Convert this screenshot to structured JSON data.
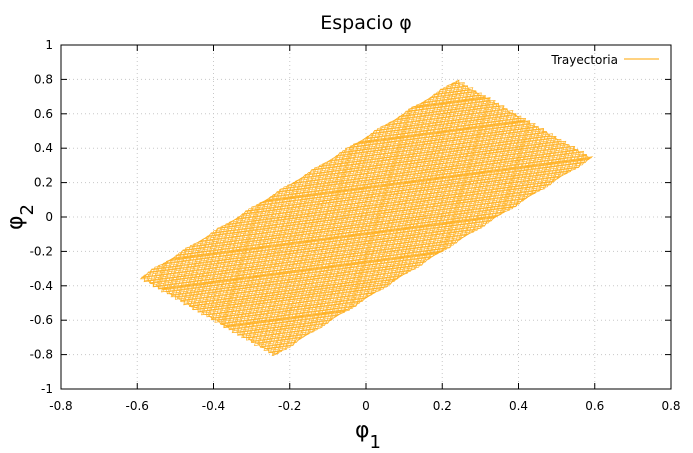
{
  "chart_data": {
    "type": "line",
    "title": "Espacio φ",
    "xlabel": "φ1",
    "ylabel": "φ2",
    "xlim": [
      -0.8,
      0.8
    ],
    "ylim": [
      -1,
      1
    ],
    "xticks": [
      -0.8,
      -0.6,
      -0.4,
      -0.2,
      0,
      0.2,
      0.4,
      0.6,
      0.8
    ],
    "yticks": [
      -1,
      -0.8,
      -0.6,
      -0.4,
      -0.2,
      0,
      0.2,
      0.4,
      0.6,
      0.8,
      1
    ],
    "xtick_labels": [
      "-0.8",
      "-0.6",
      "-0.4",
      "-0.2",
      "0",
      "0.2",
      "0.4",
      "0.6",
      "0.8"
    ],
    "ytick_labels": [
      "-1",
      "-0.8",
      "-0.6",
      "-0.4",
      "-0.2",
      "0",
      "0.2",
      "0.4",
      "0.6",
      "0.8",
      "1"
    ],
    "grid": true,
    "legend_position": "top-right",
    "series": [
      {
        "name": "Trayectoria",
        "color": "#ffa500",
        "extreme_points": [
          {
            "x": 0.6,
            "y": 0.35
          },
          {
            "x": 0.24,
            "y": 0.81
          },
          {
            "x": -0.6,
            "y": -0.36
          },
          {
            "x": -0.24,
            "y": -0.81
          }
        ]
      }
    ]
  }
}
